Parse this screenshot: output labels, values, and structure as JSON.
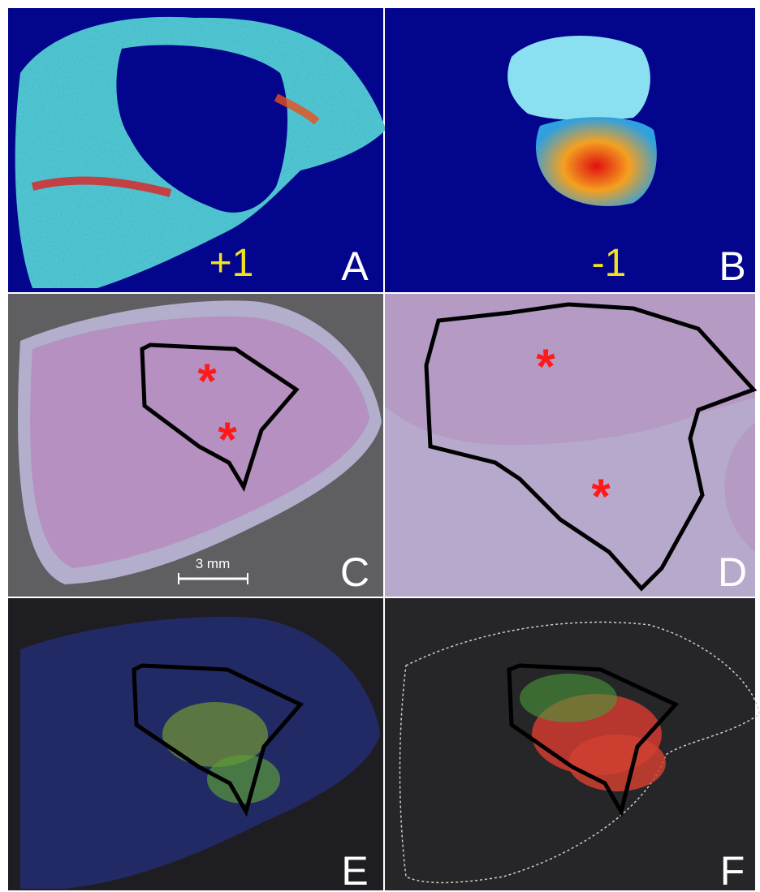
{
  "panels": [
    {
      "label": "A",
      "annotation": "+1"
    },
    {
      "label": "B",
      "annotation": "-1"
    },
    {
      "label": "C",
      "markers": [
        "*",
        "*"
      ],
      "scale_bar": "3 mm"
    },
    {
      "label": "D",
      "markers": [
        "*",
        "*"
      ]
    },
    {
      "label": "E"
    },
    {
      "label": "F"
    }
  ]
}
